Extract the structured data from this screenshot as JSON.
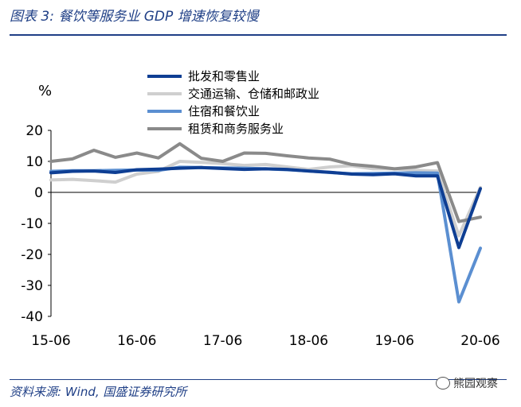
{
  "header": {
    "title": "图表 3:  餐饮等服务业 GDP 增速恢复较慢"
  },
  "footer": {
    "source": "资料来源: Wind, 国盛证券研究所",
    "watermark": "熊园观察"
  },
  "colors": {
    "series1": "#0e3e93",
    "series2": "#cfcfcf",
    "series3": "#5b8fd1",
    "series4": "#8a8a8a",
    "title": "#1f3f86"
  },
  "chart_data": {
    "type": "line",
    "ylabel": "%",
    "ylim": [
      -40,
      20
    ],
    "yticks": [
      20,
      10,
      0,
      -10,
      -20,
      -30,
      -40
    ],
    "xtick_labels": [
      "15-06",
      "16-06",
      "17-06",
      "18-06",
      "19-06",
      "20-06"
    ],
    "x": [
      "2015Q2",
      "2015Q3",
      "2015Q4",
      "2016Q1",
      "2016Q2",
      "2016Q3",
      "2016Q4",
      "2017Q1",
      "2017Q2",
      "2017Q3",
      "2017Q4",
      "2018Q1",
      "2018Q2",
      "2018Q3",
      "2018Q4",
      "2019Q1",
      "2019Q2",
      "2019Q3",
      "2019Q4",
      "2020Q1",
      "2020Q2"
    ],
    "legend_position": "top",
    "series": [
      {
        "name": "批发和零售业",
        "values": [
          6.3,
          6.8,
          6.9,
          6.4,
          7.3,
          7.5,
          7.8,
          8.0,
          7.7,
          7.4,
          7.6,
          7.4,
          6.9,
          6.5,
          5.9,
          5.7,
          6.0,
          5.3,
          5.3,
          -17.8,
          1.2
        ]
      },
      {
        "name": "交通运输、仓储和邮政业",
        "values": [
          4.0,
          4.2,
          3.8,
          3.3,
          5.9,
          6.8,
          10.0,
          9.7,
          9.3,
          8.7,
          9.0,
          8.2,
          7.4,
          8.2,
          8.6,
          7.6,
          7.6,
          7.1,
          6.9,
          -14.0,
          1.6
        ]
      },
      {
        "name": "住宿和餐饮业",
        "values": [
          6.8,
          7.0,
          7.0,
          7.1,
          7.2,
          7.1,
          8.1,
          8.0,
          7.9,
          7.8,
          7.6,
          7.3,
          6.9,
          6.4,
          6.0,
          6.1,
          6.2,
          6.3,
          6.2,
          -35.3,
          -18.0
        ]
      },
      {
        "name": "租赁和商务服务业",
        "values": [
          10.0,
          10.8,
          13.6,
          11.3,
          12.7,
          11.1,
          15.7,
          11.0,
          10.0,
          12.7,
          12.6,
          11.8,
          11.1,
          10.7,
          9.0,
          8.4,
          7.6,
          8.2,
          9.6,
          -9.4,
          -8.0
        ]
      }
    ]
  }
}
